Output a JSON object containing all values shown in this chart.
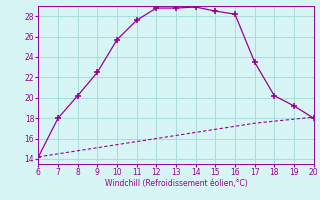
{
  "xlabel": "Windchill (Refroidissement éolien,°C)",
  "x_main": [
    6,
    7,
    8,
    9,
    10,
    11,
    12,
    13,
    14,
    15,
    16,
    17,
    18,
    19,
    20
  ],
  "y_main": [
    14.2,
    18.0,
    20.2,
    22.5,
    25.7,
    27.6,
    28.8,
    28.8,
    28.9,
    28.5,
    28.2,
    23.5,
    20.2,
    19.2,
    18.0
  ],
  "x_dashed": [
    6,
    7,
    8,
    9,
    10,
    11,
    12,
    13,
    14,
    15,
    16,
    17,
    18,
    19,
    20
  ],
  "y_dashed": [
    14.2,
    14.5,
    14.8,
    15.1,
    15.4,
    15.7,
    16.0,
    16.3,
    16.6,
    16.9,
    17.2,
    17.5,
    17.7,
    17.9,
    18.1
  ],
  "line_color": "#990099",
  "bg_color": "#d8f5f5",
  "grid_color": "#aadddd",
  "xlim": [
    6,
    20
  ],
  "ylim": [
    13.5,
    29
  ],
  "yticks": [
    14,
    16,
    18,
    20,
    22,
    24,
    26,
    28
  ],
  "xticks": [
    6,
    7,
    8,
    9,
    10,
    11,
    12,
    13,
    14,
    15,
    16,
    17,
    18,
    19,
    20
  ]
}
